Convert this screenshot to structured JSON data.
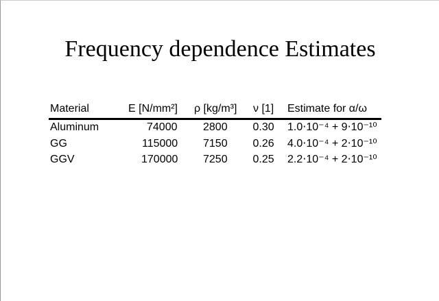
{
  "title": "Frequency dependence Estimates",
  "table": {
    "header": [
      "Material",
      "E [N/mm²]",
      "ρ [kg/m³]",
      "ν [1]",
      "Estimate for α/ω"
    ],
    "rows": [
      [
        "Aluminum",
        "74000",
        "2800",
        "0.30",
        "1.0⋅10⁻⁴ + 9⋅10⁻¹⁰"
      ],
      [
        "GG",
        "115000",
        "7150",
        "0.26",
        "4.0⋅10⁻⁴ + 2⋅10⁻¹⁰"
      ],
      [
        "GGV",
        "170000",
        "7250",
        "0.25",
        "2.2⋅10⁻⁴ + 2⋅10⁻¹⁰"
      ]
    ]
  }
}
